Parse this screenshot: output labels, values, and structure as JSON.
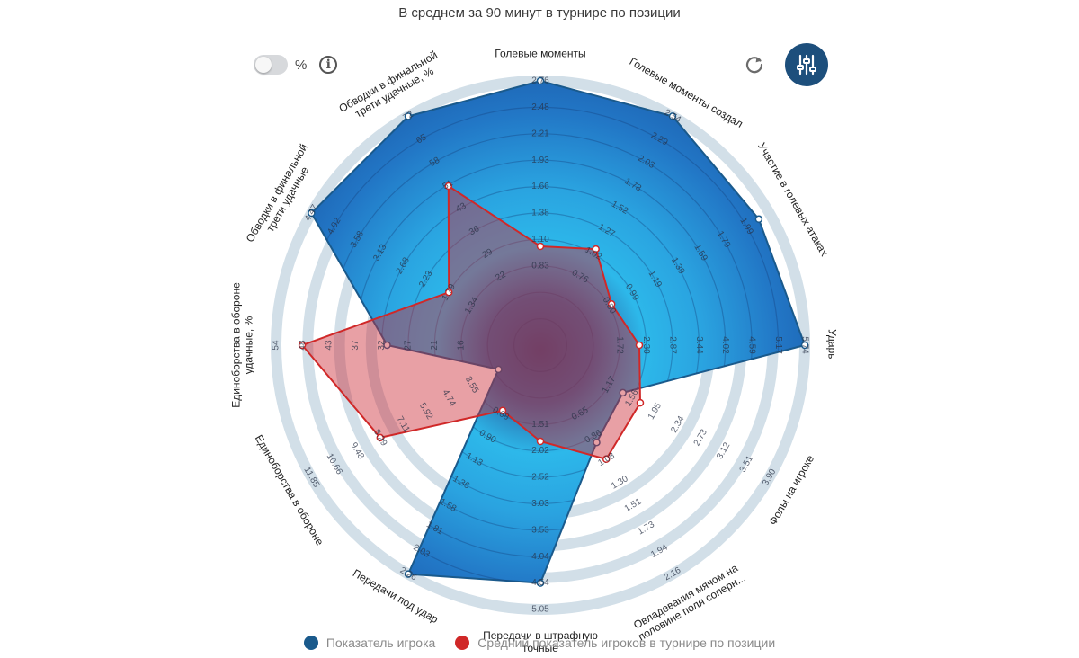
{
  "header": {
    "title": "В среднем за 90 минут в турнире по позиции",
    "percent_label": "%"
  },
  "colors": {
    "player": "#1a5a8c",
    "average": "#d02828",
    "ring": "#d2dfe8",
    "fill_outer": "#1e67b3",
    "fill_inner": "#2ec2ee"
  },
  "legend": {
    "player_label": "Показатель игрока",
    "average_label": "Средний показатель игроков в турнире по позиции"
  },
  "chart_data": {
    "type": "radar",
    "title": "В среднем за 90 минут в турнире по позиции",
    "axes": [
      {
        "label": "Голевые моменты",
        "ticks": [
          "0.83",
          "1.10",
          "1.38",
          "1.66",
          "1.93",
          "2.21",
          "2.48",
          "2.76"
        ],
        "player": 1.0,
        "average": 0.374
      },
      {
        "label": "Голевые моменты создал",
        "ticks": [
          "0.76",
          "1.02",
          "1.27",
          "1.52",
          "1.78",
          "2.03",
          "2.29",
          "2.54"
        ],
        "player": 1.0,
        "average": 0.42
      },
      {
        "label": "Участие в голевых атаках",
        "ticks": [
          "0.80",
          "0.99",
          "1.19",
          "1.39",
          "1.59",
          "1.79",
          "1.99"
        ],
        "player": 0.954,
        "average": 0.311
      },
      {
        "label": "Удары",
        "ticks": [
          "1.72",
          "2.30",
          "2.87",
          "3.44",
          "4.02",
          "4.59",
          "5.17",
          "5.74"
        ],
        "player": 1.0,
        "average": 0.374
      },
      {
        "label": "Фолы на игроке",
        "ticks": [
          "1.17",
          "1.56",
          "1.95",
          "2.34",
          "2.73",
          "3.12",
          "3.51",
          "3.90"
        ],
        "player": 0.36,
        "average": 0.436
      },
      {
        "label": "Овладевания мячом на половине поля соперн...",
        "ticks": [
          "0.65",
          "0.86",
          "1.08",
          "1.30",
          "1.51",
          "1.73",
          "1.94",
          "2.16"
        ],
        "player": 0.425,
        "average": 0.498
      },
      {
        "label": "Передачи в штрафную точные",
        "ticks": [
          "1.51",
          "2.02",
          "2.52",
          "3.03",
          "3.53",
          "4.04",
          "4.54",
          "5.05"
        ],
        "player": 0.9,
        "average": 0.364
      },
      {
        "label": "Передачи под удар",
        "ticks": [
          "0.68",
          "0.90",
          "1.13",
          "1.36",
          "1.58",
          "1.81",
          "2.03",
          "2.26"
        ],
        "player": 1.0,
        "average": 0.286
      },
      {
        "label": "Единоборства в обороне",
        "ticks": [
          "3.55",
          "4.74",
          "5.92",
          "7.11",
          "8.29",
          "9.48",
          "10.66",
          "11.85"
        ],
        "player": 0.183,
        "average": 0.7
      },
      {
        "label": "Единоборства в обороне удачные, %",
        "ticks": [
          "16",
          "21",
          "27",
          "32",
          "37",
          "43",
          "48",
          "54"
        ],
        "player": 0.58,
        "average": 0.901
      },
      {
        "label": "Обводки в финальной трети удачные",
        "ticks": [
          "1.34",
          "1.79",
          "2.23",
          "2.68",
          "3.13",
          "3.58",
          "4.02",
          "4.47"
        ],
        "player": 1.0,
        "average": 0.4
      },
      {
        "label": "Обводки в финальной трети удачные, %",
        "ticks": [
          "22",
          "29",
          "36",
          "43",
          "51",
          "58",
          "65",
          "72"
        ],
        "player": 1.0,
        "average": 0.695
      }
    ]
  }
}
